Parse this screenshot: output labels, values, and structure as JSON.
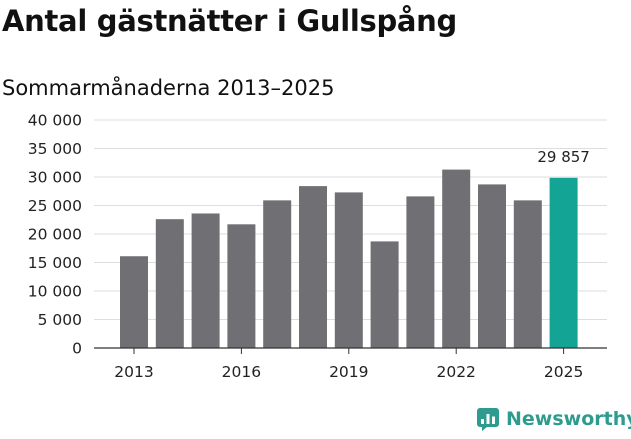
{
  "title": "Antal gästnätter i Gullspång",
  "subtitle": "Sommarmånaderna 2013–2025",
  "brand": {
    "name": "Newsworthy",
    "logo_icon": "newsworthy-chart-icon",
    "color": "#2d9c8f"
  },
  "chart_data": {
    "type": "bar",
    "categories": [
      "2013",
      "2014",
      "2015",
      "2016",
      "2017",
      "2018",
      "2019",
      "2020",
      "2021",
      "2022",
      "2023",
      "2024",
      "2025"
    ],
    "values": [
      16100,
      22600,
      23600,
      21700,
      25900,
      28400,
      27300,
      18700,
      26600,
      31300,
      28700,
      25900,
      29857
    ],
    "x_tick_labels": [
      "2013",
      "2016",
      "2019",
      "2022",
      "2025"
    ],
    "y_ticks": [
      0,
      5000,
      10000,
      15000,
      20000,
      25000,
      30000,
      35000,
      40000
    ],
    "y_tick_labels": [
      "0",
      "5 000",
      "10 000",
      "15 000",
      "20 000",
      "25 000",
      "30 000",
      "35 000",
      "40 000"
    ],
    "ylim": [
      0,
      40000
    ],
    "grid": true,
    "bar_color": "#706f74",
    "highlight_color": "#14a495",
    "highlight_index": 12,
    "annotations": [
      {
        "category": "2025",
        "text": "29 857"
      }
    ]
  }
}
